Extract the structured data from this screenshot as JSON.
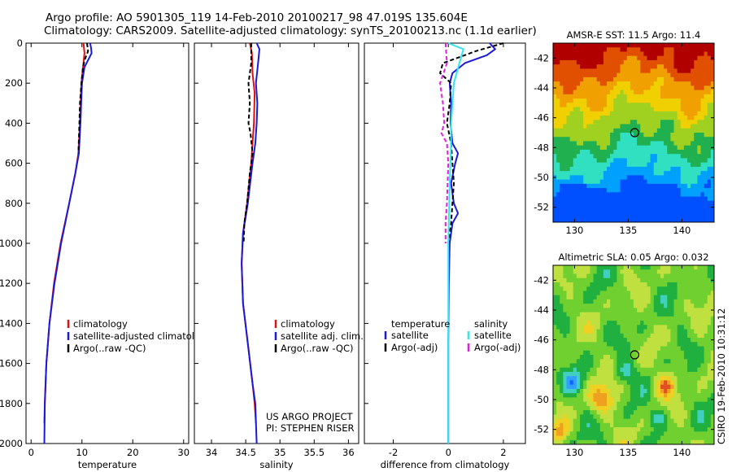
{
  "header": {
    "line1": "Argo profile: AO 5901305_119 14-Feb-2010 20100217_98 47.019S 135.604E",
    "line2": "Climatology: CARS2009. Satellite-adjusted climatology: synTS_20100213.nc (1.1d earlier)"
  },
  "footer": {
    "project": "US ARGO PROJECT",
    "pi": "PI: STEPHEN RISER",
    "stamp": "CSIRO 19-Feb-2010 10:31:12"
  },
  "colors": {
    "climatology": "#e01010",
    "satellite": "#1a1adc",
    "argo": "#000000",
    "sat_diff_salinity": "#30e8f0",
    "argo_diff_salinity": "#e020e0"
  },
  "chart_data": [
    {
      "id": "temperature",
      "type": "line",
      "title": "",
      "xlabel": "temperature",
      "ylabel": "",
      "xlim": [
        -1,
        31
      ],
      "ylim": [
        2000,
        0
      ],
      "xticks": [
        0,
        10,
        20,
        30
      ],
      "xtick_labels": [
        "0",
        "10",
        "20",
        "30"
      ],
      "yticks": [
        0,
        200,
        400,
        600,
        800,
        1000,
        1200,
        1400,
        1600,
        1800,
        2000
      ],
      "ytick_labels": [
        "0",
        "200",
        "400",
        "600",
        "800",
        "1000",
        "1200",
        "1400",
        "1600",
        "1800",
        "2000"
      ],
      "legend": [
        "climatology",
        "satellite-adjusted climatology",
        "Argo(..raw -QC)"
      ],
      "series": [
        {
          "name": "climatology",
          "color": "#e01010",
          "dash": "",
          "points": [
            [
              10.3,
              0
            ],
            [
              10.5,
              50
            ],
            [
              10.3,
              100
            ],
            [
              9.9,
              200
            ],
            [
              9.6,
              400
            ],
            [
              9.3,
              550
            ],
            [
              8.7,
              650
            ],
            [
              7.5,
              800
            ],
            [
              5.8,
              1000
            ],
            [
              4.5,
              1200
            ],
            [
              3.6,
              1400
            ],
            [
              3.0,
              1600
            ],
            [
              2.7,
              1800
            ],
            [
              2.6,
              1900
            ]
          ]
        },
        {
          "name": "satellite-adjusted climatology",
          "color": "#1a1adc",
          "dash": "",
          "points": [
            [
              11.6,
              0
            ],
            [
              11.8,
              25
            ],
            [
              11.9,
              50
            ],
            [
              11.3,
              80
            ],
            [
              10.5,
              120
            ],
            [
              10.0,
              200
            ],
            [
              9.7,
              400
            ],
            [
              9.4,
              550
            ],
            [
              8.7,
              650
            ],
            [
              7.5,
              800
            ],
            [
              5.9,
              1000
            ],
            [
              4.6,
              1200
            ],
            [
              3.6,
              1400
            ],
            [
              3.0,
              1600
            ],
            [
              2.7,
              1800
            ],
            [
              2.6,
              2000
            ]
          ]
        },
        {
          "name": "Argo(..raw -QC)",
          "color": "#000000",
          "dash": "5,3",
          "points": [
            [
              11.0,
              0
            ],
            [
              11.2,
              40
            ],
            [
              10.6,
              80
            ],
            [
              10.2,
              120
            ],
            [
              9.9,
              200
            ],
            [
              9.6,
              300
            ],
            [
              9.5,
              400
            ],
            [
              9.3,
              550
            ]
          ]
        }
      ]
    },
    {
      "id": "salinity",
      "type": "line",
      "title": "",
      "xlabel": "salinity",
      "ylabel": "",
      "xlim": [
        33.75,
        36.15
      ],
      "ylim": [
        2000,
        0
      ],
      "xticks": [
        34,
        34.5,
        35,
        35.5,
        36
      ],
      "xtick_labels": [
        "34",
        "34.5",
        "35",
        "35.5",
        "36"
      ],
      "yticks": [],
      "ytick_labels": [],
      "legend": [
        "climatology",
        "satellite adj. clim.",
        "Argo(..raw -QC)"
      ],
      "series": [
        {
          "name": "climatology",
          "color": "#e01010",
          "dash": "",
          "points": [
            [
              34.56,
              0
            ],
            [
              34.59,
              50
            ],
            [
              34.6,
              150
            ],
            [
              34.63,
              250
            ],
            [
              34.62,
              400
            ],
            [
              34.6,
              500
            ],
            [
              34.58,
              600
            ],
            [
              34.52,
              800
            ],
            [
              34.46,
              950
            ],
            [
              34.44,
              1100
            ],
            [
              34.46,
              1300
            ],
            [
              34.53,
              1500
            ],
            [
              34.6,
              1700
            ],
            [
              34.63,
              1800
            ],
            [
              34.65,
              1900
            ]
          ]
        },
        {
          "name": "satellite adj. clim.",
          "color": "#1a1adc",
          "dash": "",
          "points": [
            [
              34.66,
              0
            ],
            [
              34.7,
              30
            ],
            [
              34.68,
              100
            ],
            [
              34.65,
              200
            ],
            [
              34.67,
              300
            ],
            [
              34.66,
              400
            ],
            [
              34.64,
              500
            ],
            [
              34.6,
              600
            ],
            [
              34.53,
              800
            ],
            [
              34.46,
              950
            ],
            [
              34.44,
              1100
            ],
            [
              34.46,
              1300
            ],
            [
              34.53,
              1500
            ],
            [
              34.6,
              1700
            ],
            [
              34.64,
              1800
            ],
            [
              34.66,
              2000
            ]
          ]
        },
        {
          "name": "Argo(..raw -QC)",
          "color": "#000000",
          "dash": "5,3",
          "points": [
            [
              34.58,
              0
            ],
            [
              34.58,
              100
            ],
            [
              34.54,
              200
            ],
            [
              34.56,
              300
            ],
            [
              34.54,
              400
            ],
            [
              34.57,
              450
            ],
            [
              34.6,
              550
            ],
            [
              34.56,
              650
            ],
            [
              34.52,
              800
            ],
            [
              34.48,
              900
            ],
            [
              34.47,
              1000
            ]
          ]
        }
      ]
    },
    {
      "id": "difference",
      "type": "line",
      "title": "",
      "xlabel": "difference from climatology",
      "ylabel": "",
      "xlim": [
        -3.05,
        2.8
      ],
      "ylim": [
        2000,
        0
      ],
      "xticks": [
        -2,
        0,
        2
      ],
      "xtick_labels": [
        "-2",
        "0",
        "2"
      ],
      "yticks": [],
      "ytick_labels": [],
      "legend_left_title": "temperature",
      "legend_right_title": "salinity",
      "legend": [
        "satellite",
        "Argo(-adj)",
        "satellite",
        "Argo(-adj)"
      ],
      "series": [
        {
          "name": "temperature satellite",
          "color": "#1a1adc",
          "dash": "",
          "points": [
            [
              1.5,
              0
            ],
            [
              1.7,
              30
            ],
            [
              1.4,
              60
            ],
            [
              0.6,
              100
            ],
            [
              0.15,
              150
            ],
            [
              0.05,
              200
            ],
            [
              0.1,
              300
            ],
            [
              0.08,
              400
            ],
            [
              0.15,
              500
            ],
            [
              0.35,
              550
            ],
            [
              0.25,
              600
            ],
            [
              0.1,
              700
            ],
            [
              0.2,
              800
            ],
            [
              0.35,
              850
            ],
            [
              0.15,
              900
            ],
            [
              0.05,
              1000
            ],
            [
              0.02,
              1200
            ],
            [
              0.0,
              1500
            ],
            [
              0.0,
              2000
            ]
          ]
        },
        {
          "name": "temperature Argo(-adj)",
          "color": "#000000",
          "dash": "5,3",
          "points": [
            [
              2.0,
              0
            ],
            [
              1.5,
              20
            ],
            [
              1.0,
              40
            ],
            [
              0.6,
              60
            ],
            [
              -0.2,
              100
            ],
            [
              -0.3,
              150
            ],
            [
              0.1,
              200
            ],
            [
              0.05,
              300
            ],
            [
              -0.05,
              400
            ],
            [
              0.1,
              500
            ],
            [
              0.15,
              600
            ],
            [
              0.2,
              700
            ],
            [
              0.15,
              800
            ],
            [
              0.1,
              900
            ],
            [
              0.0,
              1000
            ]
          ]
        },
        {
          "name": "salinity satellite",
          "color": "#30e8f0",
          "dash": "",
          "points": [
            [
              0.0,
              0
            ],
            [
              0.55,
              30
            ],
            [
              0.4,
              100
            ],
            [
              0.2,
              200
            ],
            [
              0.15,
              300
            ],
            [
              0.1,
              400
            ],
            [
              0.1,
              500
            ],
            [
              0.05,
              700
            ],
            [
              0.0,
              1000
            ],
            [
              0.0,
              2000
            ]
          ]
        },
        {
          "name": "salinity Argo(-adj)",
          "color": "#e020e0",
          "dash": "5,3",
          "points": [
            [
              -0.1,
              0
            ],
            [
              -0.05,
              100
            ],
            [
              -0.3,
              200
            ],
            [
              -0.2,
              300
            ],
            [
              -0.15,
              400
            ],
            [
              -0.25,
              450
            ],
            [
              -0.05,
              500
            ],
            [
              0.0,
              600
            ],
            [
              -0.05,
              800
            ],
            [
              -0.1,
              900
            ],
            [
              -0.1,
              1000
            ]
          ]
        }
      ]
    },
    {
      "id": "sst_map",
      "type": "heatmap",
      "title": "AMSR-E SST: 11.5 Argo: 11.4",
      "xlim": [
        128,
        143
      ],
      "ylim": [
        -53,
        -41
      ],
      "xticks": [
        130,
        135,
        140
      ],
      "xtick_labels": [
        "130",
        "135",
        "140"
      ],
      "yticks": [
        -42,
        -44,
        -46,
        -48,
        -50,
        -52
      ],
      "ytick_labels": [
        "-42",
        "-44",
        "-46",
        "-48",
        "-50",
        "-52"
      ],
      "marker": [
        135.6,
        -47.0
      ],
      "palette": [
        "#0050ff",
        "#00a0ff",
        "#30e0c0",
        "#20b050",
        "#a0d020",
        "#f0d000",
        "#f0a000",
        "#e05000",
        "#b00000"
      ]
    },
    {
      "id": "sla_map",
      "type": "heatmap",
      "title": "Altimetric SLA: 0.05 Argo: 0.032",
      "xlim": [
        128,
        143
      ],
      "ylim": [
        -53,
        -41
      ],
      "xticks": [
        130,
        135,
        140
      ],
      "xtick_labels": [
        "130",
        "135",
        "140"
      ],
      "yticks": [
        -42,
        -44,
        -46,
        -48,
        -50,
        -52
      ],
      "ytick_labels": [
        "-42",
        "-44",
        "-46",
        "-48",
        "-50",
        "-52"
      ],
      "marker": [
        135.6,
        -47.0
      ],
      "palette": [
        "#1060ff",
        "#30a0ff",
        "#40d0c0",
        "#20b040",
        "#70d030",
        "#c0e040",
        "#f0d020",
        "#f0a020",
        "#e05020"
      ]
    }
  ]
}
